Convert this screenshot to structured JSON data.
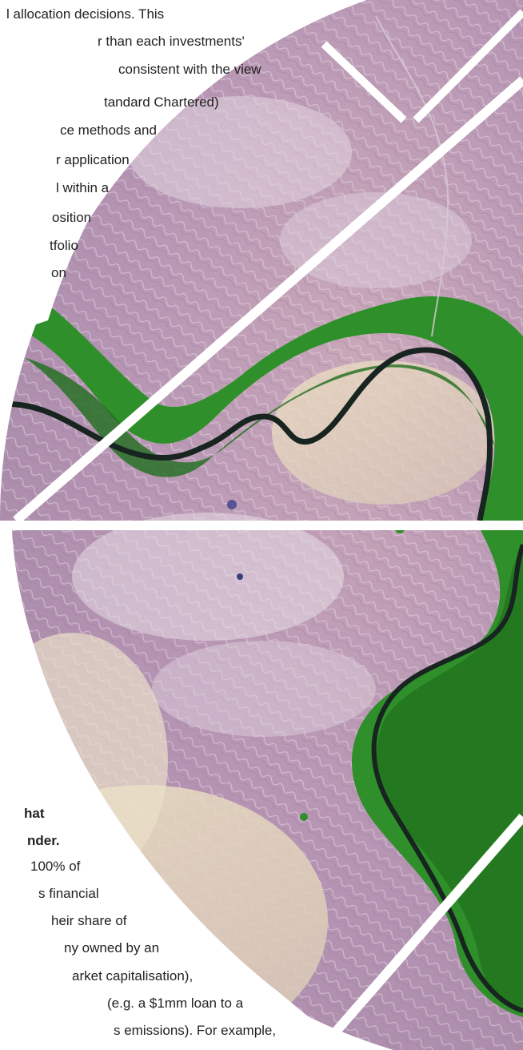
{
  "top_paragraph": {
    "lines": [
      "l allocation decisions. This",
      "r than each investments'",
      "consistent with the view",
      "tandard Chartered)",
      "ce methods and",
      "r application",
      "l within a",
      "osition",
      "tfolio",
      "on"
    ]
  },
  "bottom_paragraph": {
    "heading_lines": [
      "hat",
      "nder."
    ],
    "body_lines": [
      "100% of",
      "s financial",
      "heir share of",
      "ny owned by an",
      "arket capitalisation),",
      "(e.g. a $1mm loan to a",
      "s emissions). For example,"
    ]
  },
  "image": {
    "subject": "satellite-image-river-valley",
    "colors": {
      "desert": "#b7a0b8",
      "desert_light": "#d9cfd9",
      "sand": "#e9dcc4",
      "vegetation": "#2f8f2a",
      "vegetation_dark": "#1e6d1c",
      "river": "#1c2b2a",
      "divider": "#ffffff"
    }
  }
}
